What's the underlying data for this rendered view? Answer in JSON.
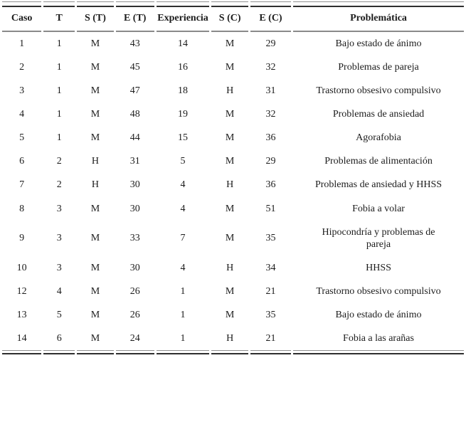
{
  "table": {
    "columns": [
      "Caso",
      "T",
      "S (T)",
      "E (T)",
      "Experiencia",
      "S (C)",
      "E (C)",
      "Problemática"
    ],
    "rows": [
      [
        "1",
        "1",
        "M",
        "43",
        "14",
        "M",
        "29",
        "Bajo estado de ánimo"
      ],
      [
        "2",
        "1",
        "M",
        "45",
        "16",
        "M",
        "32",
        "Problemas de pareja"
      ],
      [
        "3",
        "1",
        "M",
        "47",
        "18",
        "H",
        "31",
        "Trastorno obsesivo compulsivo"
      ],
      [
        "4",
        "1",
        "M",
        "48",
        "19",
        "M",
        "32",
        "Problemas de ansiedad"
      ],
      [
        "5",
        "1",
        "M",
        "44",
        "15",
        "M",
        "36",
        "Agorafobia"
      ],
      [
        "6",
        "2",
        "H",
        "31",
        "5",
        "M",
        "29",
        "Problemas de alimentación"
      ],
      [
        "7",
        "2",
        "H",
        "30",
        "4",
        "H",
        "36",
        "Problemas de ansiedad y HHSS"
      ],
      [
        "8",
        "3",
        "M",
        "30",
        "4",
        "M",
        "51",
        "Fobia a volar"
      ],
      [
        "9",
        "3",
        "M",
        "33",
        "7",
        "M",
        "35",
        "Hipocondría y problemas de pareja"
      ],
      [
        "10",
        "3",
        "M",
        "30",
        "4",
        "H",
        "34",
        "HHSS"
      ],
      [
        "12",
        "4",
        "M",
        "26",
        "1",
        "M",
        "21",
        "Trastorno obsesivo compulsivo"
      ],
      [
        "13",
        "5",
        "M",
        "26",
        "1",
        "M",
        "35",
        "Bajo estado de ánimo"
      ],
      [
        "14",
        "6",
        "M",
        "24",
        "1",
        "H",
        "21",
        "Fobia a las arañas"
      ]
    ]
  },
  "colors": {
    "text": "#1c1c1c",
    "rule_thin": "#8f8f8f",
    "rule_mid": "#8a8a8a",
    "rule_thick": "#2e2e2e",
    "background": "#ffffff"
  }
}
